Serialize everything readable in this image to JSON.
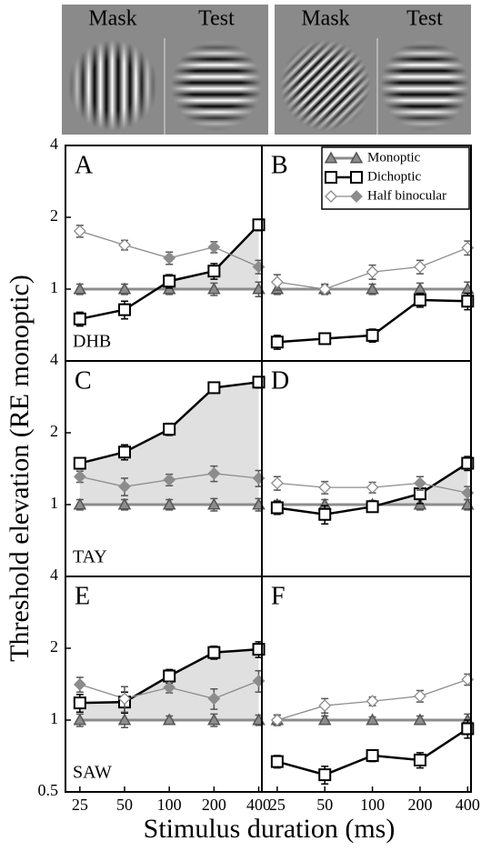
{
  "figure": {
    "image_labels": [
      "Mask",
      "Test",
      "Mask",
      "Test"
    ],
    "ylabel": "Threshold elevation (RE monoptic)",
    "xlabel": "Stimulus duration (ms)"
  },
  "chart_data": [
    {
      "type": "line",
      "label": "A",
      "observer": "DHB",
      "xscale": "log",
      "yscale": "log",
      "xlim": [
        20,
        420
      ],
      "ylim": [
        0.5,
        4
      ],
      "yticks": [
        1,
        2,
        4
      ],
      "shade": true,
      "x": [
        25,
        50,
        100,
        200,
        400
      ],
      "series": [
        {
          "name": "Monoptic",
          "color": "#8c8c8c",
          "marker": "triangle",
          "values": [
            1,
            1,
            1,
            1,
            1
          ],
          "errors": [
            0.05,
            0.05,
            0.05,
            0.06,
            0.07
          ]
        },
        {
          "name": "Dichoptic",
          "color": "#000000",
          "marker": "square",
          "values": [
            0.75,
            0.82,
            1.08,
            1.19,
            1.86
          ],
          "errors": [
            0.05,
            0.07,
            0.07,
            0.09,
            0.1
          ]
        },
        {
          "name": "Half binocular",
          "color": "#8c8c8c",
          "marker": "diamond",
          "filled": [
            false,
            false,
            true,
            true,
            true
          ],
          "values": [
            1.75,
            1.53,
            1.35,
            1.5,
            1.24
          ],
          "errors": [
            0.1,
            0.07,
            0.08,
            0.08,
            0.08
          ]
        }
      ]
    },
    {
      "type": "line",
      "label": "B",
      "xscale": "log",
      "yscale": "log",
      "xlim": [
        20,
        420
      ],
      "ylim": [
        0.5,
        4
      ],
      "shade": true,
      "legend": "upper right",
      "x": [
        25,
        50,
        100,
        200,
        400
      ],
      "series": [
        {
          "name": "Monoptic",
          "color": "#8c8c8c",
          "marker": "triangle",
          "values": [
            1,
            1,
            1,
            1,
            1
          ],
          "errors": [
            0.05,
            0.05,
            0.05,
            0.06,
            0.07
          ]
        },
        {
          "name": "Dichoptic",
          "color": "#000000",
          "marker": "square",
          "values": [
            0.6,
            0.62,
            0.64,
            0.9,
            0.89
          ],
          "errors": [
            0.04,
            0.03,
            0.04,
            0.06,
            0.07
          ]
        },
        {
          "name": "Half binocular",
          "color": "#8c8c8c",
          "marker": "diamond",
          "filled": [
            false,
            false,
            false,
            false,
            false
          ],
          "values": [
            1.07,
            1.0,
            1.18,
            1.24,
            1.49
          ],
          "errors": [
            0.08,
            0.04,
            0.08,
            0.08,
            0.1
          ]
        }
      ]
    },
    {
      "type": "line",
      "label": "C",
      "observer": "TAY",
      "xscale": "log",
      "yscale": "log",
      "xlim": [
        20,
        420
      ],
      "ylim": [
        0.5,
        4
      ],
      "yticks": [
        1,
        2,
        4
      ],
      "shade": true,
      "x": [
        25,
        50,
        100,
        200,
        400
      ],
      "series": [
        {
          "name": "Monoptic",
          "color": "#8c8c8c",
          "marker": "triangle",
          "values": [
            1,
            1,
            1,
            1,
            1
          ],
          "errors": [
            0.05,
            0.05,
            0.05,
            0.06,
            0.06
          ]
        },
        {
          "name": "Dichoptic",
          "color": "#000000",
          "marker": "square",
          "values": [
            1.49,
            1.66,
            2.07,
            3.09,
            3.26
          ],
          "errors": [
            0.08,
            0.12,
            0.12,
            0.15,
            0.18
          ]
        },
        {
          "name": "Half binocular",
          "color": "#8c8c8c",
          "marker": "diamond",
          "filled": [
            true,
            true,
            true,
            true,
            true
          ],
          "values": [
            1.31,
            1.19,
            1.27,
            1.35,
            1.29
          ],
          "errors": [
            0.07,
            0.1,
            0.07,
            0.1,
            0.1
          ]
        }
      ]
    },
    {
      "type": "line",
      "label": "D",
      "xscale": "log",
      "yscale": "log",
      "xlim": [
        20,
        420
      ],
      "ylim": [
        0.5,
        4
      ],
      "shade": true,
      "x": [
        25,
        50,
        100,
        200,
        400
      ],
      "series": [
        {
          "name": "Monoptic",
          "color": "#8c8c8c",
          "marker": "triangle",
          "values": [
            1,
            1,
            1,
            1,
            1
          ],
          "errors": [
            0.04,
            0.05,
            0.04,
            0.05,
            0.05
          ]
        },
        {
          "name": "Dichoptic",
          "color": "#000000",
          "marker": "square",
          "values": [
            0.97,
            0.91,
            0.98,
            1.11,
            1.49
          ],
          "errors": [
            0.06,
            0.08,
            0.05,
            0.1,
            0.1
          ]
        },
        {
          "name": "Half binocular",
          "color": "#8c8c8c",
          "marker": "diamond",
          "filled": [
            false,
            false,
            false,
            true,
            true
          ],
          "values": [
            1.23,
            1.18,
            1.18,
            1.23,
            1.12
          ],
          "errors": [
            0.08,
            0.07,
            0.06,
            0.08,
            0.07
          ]
        }
      ]
    },
    {
      "type": "line",
      "label": "E",
      "observer": "SAW",
      "xscale": "log",
      "yscale": "log",
      "xlim": [
        20,
        420
      ],
      "ylim": [
        0.5,
        4
      ],
      "yticks": [
        0.5,
        1,
        2,
        4
      ],
      "xticks": [
        25,
        50,
        100,
        200,
        400
      ],
      "shade": true,
      "x": [
        25,
        50,
        100,
        200,
        400
      ],
      "series": [
        {
          "name": "Monoptic",
          "color": "#8c8c8c",
          "marker": "triangle",
          "values": [
            1,
            1,
            1,
            1,
            1
          ],
          "errors": [
            0.06,
            0.07,
            0.04,
            0.06,
            0.05
          ]
        },
        {
          "name": "Dichoptic",
          "color": "#000000",
          "marker": "square",
          "values": [
            1.18,
            1.19,
            1.53,
            1.92,
            1.98
          ],
          "errors": [
            0.1,
            0.12,
            0.1,
            0.12,
            0.15
          ]
        },
        {
          "name": "Half binocular",
          "color": "#8c8c8c",
          "marker": "diamond",
          "filled": [
            true,
            false,
            true,
            true,
            true
          ],
          "values": [
            1.41,
            1.23,
            1.37,
            1.23,
            1.46
          ],
          "errors": [
            0.1,
            0.15,
            0.07,
            0.12,
            0.15
          ]
        }
      ]
    },
    {
      "type": "line",
      "label": "F",
      "xscale": "log",
      "yscale": "log",
      "xlim": [
        20,
        420
      ],
      "ylim": [
        0.5,
        4
      ],
      "xticks": [
        25,
        50,
        100,
        200,
        400
      ],
      "shade": true,
      "x": [
        25,
        50,
        100,
        200,
        400
      ],
      "series": [
        {
          "name": "Monoptic",
          "color": "#8c8c8c",
          "marker": "triangle",
          "values": [
            1,
            1,
            1,
            1,
            1
          ],
          "errors": [
            0.05,
            0.04,
            0.03,
            0.04,
            0.06
          ]
        },
        {
          "name": "Dichoptic",
          "color": "#000000",
          "marker": "square",
          "values": [
            0.67,
            0.59,
            0.71,
            0.68,
            0.92
          ],
          "errors": [
            0.04,
            0.05,
            0.04,
            0.05,
            0.08
          ]
        },
        {
          "name": "Half binocular",
          "color": "#8c8c8c",
          "marker": "diamond",
          "filled": [
            false,
            false,
            false,
            false,
            false
          ],
          "values": [
            1.0,
            1.15,
            1.2,
            1.26,
            1.48
          ],
          "errors": [
            0.05,
            0.08,
            0.05,
            0.07,
            0.08
          ]
        }
      ]
    }
  ]
}
